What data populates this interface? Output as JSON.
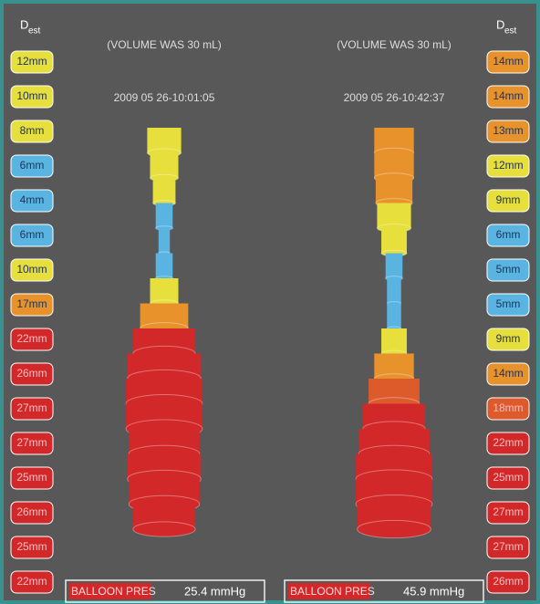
{
  "panels": [
    {
      "header": "D",
      "header_sub": "est",
      "volume": "(VOLUME WAS 30 mL)",
      "timestamp": "2009 05 26-10:01:05",
      "pressure_label": "BALLOON PRES",
      "pressure": "25.4 mmHg",
      "diameters": [
        {
          "value": 12,
          "label": "12mm"
        },
        {
          "value": 10,
          "label": "10mm"
        },
        {
          "value": 8,
          "label": "8mm"
        },
        {
          "value": 6,
          "label": "6mm"
        },
        {
          "value": 4,
          "label": "4mm"
        },
        {
          "value": 6,
          "label": "6mm"
        },
        {
          "value": 10,
          "label": "10mm"
        },
        {
          "value": 17,
          "label": "17mm"
        },
        {
          "value": 22,
          "label": "22mm"
        },
        {
          "value": 26,
          "label": "26mm"
        },
        {
          "value": 27,
          "label": "27mm"
        },
        {
          "value": 27,
          "label": "27mm"
        },
        {
          "value": 25,
          "label": "25mm"
        },
        {
          "value": 26,
          "label": "26mm"
        },
        {
          "value": 25,
          "label": "25mm"
        },
        {
          "value": 22,
          "label": "22mm"
        }
      ]
    },
    {
      "header": "D",
      "header_sub": "est",
      "volume": "(VOLUME WAS 30 mL)",
      "timestamp": "2009 05 26-10:42:37",
      "pressure_label": "BALLOON PRES",
      "pressure": "45.9 mmHg",
      "diameters": [
        {
          "value": 14,
          "label": "14mm"
        },
        {
          "value": 14,
          "label": "14mm"
        },
        {
          "value": 13,
          "label": "13mm"
        },
        {
          "value": 12,
          "label": "12mm"
        },
        {
          "value": 9,
          "label": "9mm"
        },
        {
          "value": 6,
          "label": "6mm"
        },
        {
          "value": 5,
          "label": "5mm"
        },
        {
          "value": 5,
          "label": "5mm"
        },
        {
          "value": 9,
          "label": "9mm"
        },
        {
          "value": 14,
          "label": "14mm"
        },
        {
          "value": 18,
          "label": "18mm"
        },
        {
          "value": 22,
          "label": "22mm"
        },
        {
          "value": 25,
          "label": "25mm"
        },
        {
          "value": 27,
          "label": "27mm"
        },
        {
          "value": 27,
          "label": "27mm"
        },
        {
          "value": 26,
          "label": "26mm"
        }
      ]
    }
  ]
}
